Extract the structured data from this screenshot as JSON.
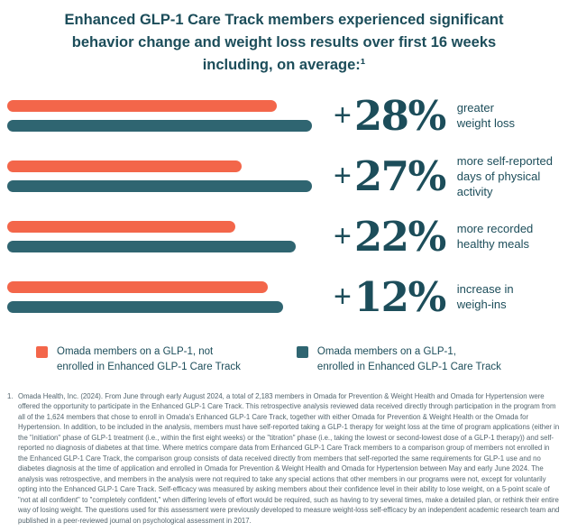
{
  "title": {
    "lines": [
      "Enhanced GLP-1 Care Track members experienced significant",
      "behavior change and weight loss results over first 16 weeks",
      "including, on average:¹"
    ]
  },
  "colors": {
    "orange": "#F3664A",
    "teal": "#2F6571",
    "heading": "#1C4D5A",
    "footnote_text": "#53656E"
  },
  "chart_data": {
    "type": "bar",
    "orientation": "horizontal",
    "title": "Enhanced GLP-1 Care Track members experienced significant behavior change and weight loss results over first 16 weeks including, on average:",
    "categories": [
      "greater weight loss",
      "more self-reported days of physical activity",
      "more recorded healthy meals",
      "increase in weigh-ins"
    ],
    "values": [
      "+28%",
      "+27%",
      "+22%",
      "+12%"
    ],
    "series": [
      {
        "name": "Omada members on a GLP-1, not enrolled in Enhanced GLP-1 Care Track",
        "color": "#F3664A",
        "bar_lengths_pct_of_track": [
          85,
          74,
          72,
          82
        ]
      },
      {
        "name": "Omada members on a GLP-1, enrolled in Enhanced GLP-1 Care Track",
        "color": "#2F6571",
        "bar_lengths_pct_of_track": [
          96,
          96,
          91,
          87
        ]
      }
    ],
    "rows": [
      {
        "plus": "+",
        "value": "28%",
        "label_lines": [
          "greater",
          "weight loss"
        ],
        "not_enrolled_bar_pct": 85,
        "enrolled_bar_pct": 96
      },
      {
        "plus": "+",
        "value": "27%",
        "label_lines": [
          "more self-reported",
          "days of physical",
          "activity"
        ],
        "not_enrolled_bar_pct": 74,
        "enrolled_bar_pct": 96
      },
      {
        "plus": "+",
        "value": "22%",
        "label_lines": [
          "more recorded",
          "healthy meals"
        ],
        "not_enrolled_bar_pct": 72,
        "enrolled_bar_pct": 91
      },
      {
        "plus": "+",
        "value": "12%",
        "label_lines": [
          "increase in",
          "weigh-ins"
        ],
        "not_enrolled_bar_pct": 82,
        "enrolled_bar_pct": 87
      }
    ]
  },
  "legend": {
    "items": [
      {
        "color": "#F3664A",
        "lines": [
          "Omada members on a GLP-1, not",
          "enrolled in Enhanced GLP-1 Care Track"
        ]
      },
      {
        "color": "#2F6571",
        "lines": [
          "Omada members on a GLP-1,",
          "enrolled in Enhanced GLP-1 Care Track"
        ]
      }
    ]
  },
  "footnote": {
    "marker": "1.",
    "text": "Omada Health, Inc. (2024). From June through early August 2024, a total of 2,183 members in Omada for Prevention & Weight Health and Omada for Hypertension were offered the opportunity to participate in the Enhanced GLP-1 Care Track. This retrospective analysis reviewed data received directly through participation in the program from all of the 1,624 members that chose to enroll in Omada's Enhanced GLP-1 Care Track, together with either Omada for Prevention & Weight Health or the Omada for Hypertension. In addition, to be included in the analysis, members must have self-reported taking a GLP-1 therapy for weight loss at the time of program applications (either in the \"initiation\" phase of GLP-1 treatment (i.e., within the first eight weeks) or the \"titration\" phase (i.e., taking the lowest or second-lowest dose of a GLP-1 therapy)) and self-reported no diagnosis of diabetes at that time. Where metrics compare data from Enhanced GLP-1 Care Track members to a comparison group of members not enrolled in the Enhanced GLP-1 Care Track, the comparison group consists of data received directly from members that self-reported the same requirements for GLP-1 use and no diabetes diagnosis at the time of application and enrolled in Omada for Prevention & Weight Health and Omada for Hypertension between May and early June 2024. The analysis was retrospective, and members in the analysis were not required to take any special actions that other members in our programs were not, except for voluntarily opting into the Enhanced GLP-1 Care Track. Self-efficacy was measured by asking members about their confidence level in their ability to lose weight, on a 5-point scale of \"not at all confident\" to \"completely confident,\" when differing levels of effort would be required, such as having to try several times, make a detailed plan, or rethink their entire way of losing weight. The questions used for this assessment were previously developed to measure weight-loss self-efficacy by an independent academic research team and published in a peer-reviewed journal on psychological assessment in 2017."
  }
}
